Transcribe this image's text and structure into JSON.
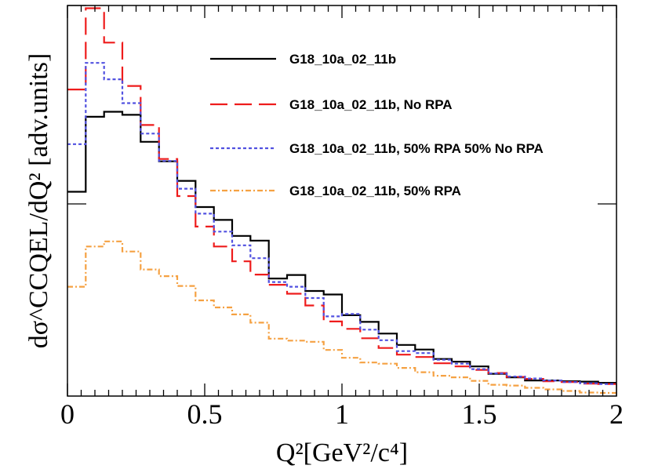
{
  "chart_data": {
    "type": "line",
    "step": true,
    "title": "",
    "xlabel": "Q²[GeV²/c⁴]",
    "ylabel": "dσ^CCQEL/dQ² [adv.units]",
    "xlim": [
      0,
      2
    ],
    "ylim": [
      0,
      1
    ],
    "x_ticks": [
      0,
      0.5,
      1,
      1.5,
      2
    ],
    "x_tick_labels": [
      "0",
      "0.5",
      "1",
      "1.5",
      "2"
    ],
    "y_ticks": [
      0.492,
      1.0
    ],
    "y_tick_labels": [
      "",
      ""
    ],
    "grid": false,
    "legend_position": "top-right",
    "bin_edges": [
      0,
      0.0667,
      0.1333,
      0.2,
      0.2667,
      0.3333,
      0.4,
      0.4667,
      0.5333,
      0.6,
      0.6667,
      0.7333,
      0.8,
      0.8667,
      0.9333,
      1.0,
      1.0667,
      1.1333,
      1.2,
      1.2667,
      1.3333,
      1.4,
      1.4667,
      1.5333,
      1.6,
      1.6667,
      1.7333,
      1.8,
      1.8667,
      1.9333,
      2.0
    ],
    "series": [
      {
        "name": "G18_10a_02_11b",
        "color": "#000000",
        "dash": "solid",
        "values": [
          0.523,
          0.715,
          0.728,
          0.72,
          0.651,
          0.601,
          0.551,
          0.484,
          0.451,
          0.41,
          0.398,
          0.301,
          0.31,
          0.269,
          0.26,
          0.207,
          0.19,
          0.16,
          0.131,
          0.119,
          0.095,
          0.088,
          0.076,
          0.057,
          0.048,
          0.04,
          0.04,
          0.038,
          0.037,
          0.034
        ]
      },
      {
        "name": "G18_10a_02_11b, No RPA",
        "color": "#ee1c1c",
        "dash": "long-dash",
        "values": [
          0.785,
          0.993,
          0.905,
          0.794,
          0.694,
          0.607,
          0.512,
          0.434,
          0.383,
          0.345,
          0.311,
          0.285,
          0.262,
          0.232,
          0.191,
          0.172,
          0.148,
          0.123,
          0.106,
          0.1,
          0.084,
          0.076,
          0.067,
          0.059,
          0.049,
          0.044,
          0.038,
          0.036,
          0.032,
          0.031
        ]
      },
      {
        "name": "G18_10a_02_11b, 50% RPA 50% No RPA",
        "color": "#5151e0",
        "dash": "dotted",
        "values": [
          0.645,
          0.853,
          0.811,
          0.75,
          0.672,
          0.602,
          0.531,
          0.467,
          0.421,
          0.386,
          0.353,
          0.292,
          0.28,
          0.251,
          0.204,
          0.21,
          0.17,
          0.143,
          0.115,
          0.11,
          0.093,
          0.083,
          0.069,
          0.058,
          0.05,
          0.045,
          0.04,
          0.036,
          0.033,
          0.031
        ]
      },
      {
        "name": "G18_10a_02_11b, 50% RPA",
        "color": "#f5a142",
        "dash": "dash-dot",
        "values": [
          0.28,
          0.383,
          0.396,
          0.37,
          0.324,
          0.307,
          0.282,
          0.245,
          0.227,
          0.209,
          0.188,
          0.147,
          0.142,
          0.139,
          0.118,
          0.098,
          0.086,
          0.083,
          0.072,
          0.061,
          0.052,
          0.048,
          0.039,
          0.029,
          0.027,
          0.021,
          0.017,
          0.013,
          0.009,
          0.008
        ]
      }
    ]
  }
}
